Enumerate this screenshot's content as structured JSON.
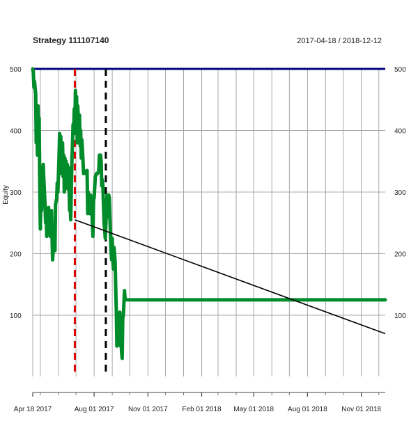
{
  "chart_data": {
    "type": "line",
    "title": "Strategy 111107140",
    "date_range": "2017-04-18 / 2018-12-12",
    "ylabel": "Equity",
    "xlabel": "",
    "xlim": [
      "2017-04-18",
      "2018-12-12"
    ],
    "ylim": [
      0,
      500
    ],
    "y_ticks": [
      100,
      200,
      300,
      400,
      500
    ],
    "x_ticks": [
      {
        "date": "2017-04-18",
        "label": "Apr 18 2017"
      },
      {
        "date": "2017-08-01",
        "label": "Aug 01 2017"
      },
      {
        "date": "2017-11-01",
        "label": "Nov 01 2017"
      },
      {
        "date": "2018-02-01",
        "label": "Feb 01 2018"
      },
      {
        "date": "2018-05-01",
        "label": "May 01 2018"
      },
      {
        "date": "2018-08-01",
        "label": "Aug 01 2018"
      },
      {
        "date": "2018-11-01",
        "label": "Nov 01 2018"
      }
    ],
    "minor_gridlines": [
      "2017-05-01",
      "2017-06-01",
      "2017-07-01",
      "2017-09-01",
      "2017-10-01",
      "2017-12-01",
      "2018-01-01",
      "2018-03-01",
      "2018-04-01",
      "2018-06-01",
      "2018-07-01",
      "2018-09-01",
      "2018-10-01",
      "2018-12-01"
    ],
    "grid": true,
    "series": [
      {
        "color": "#008c2a",
        "points": [
          [
            "2017-04-18",
            500
          ],
          [
            "2017-04-19",
            495
          ],
          [
            "2017-04-20",
            470
          ],
          [
            "2017-04-21",
            480
          ],
          [
            "2017-04-23",
            460
          ],
          [
            "2017-04-24",
            380
          ],
          [
            "2017-04-25",
            430
          ],
          [
            "2017-04-26",
            360
          ],
          [
            "2017-04-27",
            440
          ],
          [
            "2017-04-28",
            390
          ],
          [
            "2017-04-29",
            420
          ],
          [
            "2017-04-30",
            310
          ],
          [
            "2017-05-01",
            240
          ],
          [
            "2017-05-02",
            290
          ],
          [
            "2017-05-03",
            270
          ],
          [
            "2017-05-04",
            340
          ],
          [
            "2017-05-05",
            300
          ],
          [
            "2017-05-06",
            345
          ],
          [
            "2017-05-07",
            320
          ],
          [
            "2017-05-08",
            300
          ],
          [
            "2017-05-09",
            280
          ],
          [
            "2017-05-10",
            250
          ],
          [
            "2017-05-11",
            270
          ],
          [
            "2017-05-12",
            228
          ],
          [
            "2017-05-13",
            265
          ],
          [
            "2017-05-14",
            245
          ],
          [
            "2017-05-15",
            275
          ],
          [
            "2017-05-16",
            250
          ],
          [
            "2017-05-18",
            228
          ],
          [
            "2017-05-20",
            270
          ],
          [
            "2017-05-21",
            230
          ],
          [
            "2017-05-22",
            190
          ],
          [
            "2017-05-23",
            205
          ],
          [
            "2017-05-24",
            245
          ],
          [
            "2017-05-26",
            205
          ],
          [
            "2017-05-27",
            280
          ],
          [
            "2017-05-29",
            290
          ],
          [
            "2017-05-30",
            315
          ],
          [
            "2017-05-31",
            300
          ],
          [
            "2017-06-02",
            360
          ],
          [
            "2017-06-03",
            395
          ],
          [
            "2017-06-04",
            370
          ],
          [
            "2017-06-05",
            390
          ],
          [
            "2017-06-06",
            330
          ],
          [
            "2017-06-08",
            380
          ],
          [
            "2017-06-09",
            325
          ],
          [
            "2017-06-10",
            360
          ],
          [
            "2017-06-11",
            300
          ],
          [
            "2017-06-12",
            355
          ],
          [
            "2017-06-13",
            335
          ],
          [
            "2017-06-14",
            350
          ],
          [
            "2017-06-15",
            320
          ],
          [
            "2017-06-16",
            345
          ],
          [
            "2017-06-17",
            305
          ],
          [
            "2017-06-18",
            340
          ],
          [
            "2017-06-19",
            320
          ],
          [
            "2017-06-20",
            270
          ],
          [
            "2017-06-21",
            290
          ],
          [
            "2017-06-22",
            255
          ],
          [
            "2017-06-23",
            305
          ],
          [
            "2017-06-24",
            350
          ],
          [
            "2017-06-25",
            380
          ],
          [
            "2017-06-26",
            410
          ],
          [
            "2017-06-27",
            395
          ],
          [
            "2017-06-28",
            435
          ],
          [
            "2017-06-29",
            400
          ],
          [
            "2017-06-30",
            465
          ],
          [
            "2017-07-01",
            430
          ],
          [
            "2017-07-02",
            455
          ],
          [
            "2017-07-03",
            380
          ],
          [
            "2017-07-04",
            440
          ],
          [
            "2017-07-05",
            415
          ],
          [
            "2017-07-06",
            390
          ],
          [
            "2017-07-07",
            425
          ],
          [
            "2017-07-08",
            375
          ],
          [
            "2017-07-09",
            400
          ],
          [
            "2017-07-10",
            355
          ],
          [
            "2017-07-11",
            385
          ],
          [
            "2017-07-12",
            370
          ],
          [
            "2017-07-14",
            330
          ],
          [
            "2017-07-15",
            330
          ],
          [
            "2017-07-20",
            335
          ],
          [
            "2017-07-21",
            265
          ],
          [
            "2017-07-22",
            300
          ],
          [
            "2017-07-23",
            270
          ],
          [
            "2017-07-24",
            268
          ],
          [
            "2017-07-25",
            265
          ],
          [
            "2017-07-26",
            295
          ],
          [
            "2017-07-27",
            265
          ],
          [
            "2017-07-28",
            275
          ],
          [
            "2017-07-29",
            250
          ],
          [
            "2017-07-30",
            228
          ],
          [
            "2017-07-31",
            290
          ],
          [
            "2017-08-01",
            290
          ],
          [
            "2017-08-03",
            325
          ],
          [
            "2017-08-05",
            330
          ],
          [
            "2017-08-07",
            330
          ],
          [
            "2017-08-09",
            335
          ],
          [
            "2017-08-10",
            360
          ],
          [
            "2017-08-11",
            340
          ],
          [
            "2017-08-12",
            360
          ],
          [
            "2017-08-13",
            350
          ],
          [
            "2017-08-14",
            310
          ],
          [
            "2017-08-15",
            320
          ],
          [
            "2017-08-16",
            310
          ],
          [
            "2017-08-17",
            280
          ],
          [
            "2017-08-18",
            250
          ],
          [
            "2017-08-19",
            240
          ],
          [
            "2017-08-20",
            225
          ],
          [
            "2017-08-21",
            245
          ],
          [
            "2017-08-22",
            265
          ],
          [
            "2017-08-23",
            295
          ],
          [
            "2017-08-24",
            260
          ],
          [
            "2017-08-25",
            280
          ],
          [
            "2017-08-26",
            295
          ],
          [
            "2017-08-27",
            290
          ],
          [
            "2017-08-29",
            230
          ],
          [
            "2017-08-30",
            205
          ],
          [
            "2017-08-31",
            190
          ],
          [
            "2017-09-01",
            225
          ],
          [
            "2017-09-02",
            190
          ],
          [
            "2017-09-03",
            175
          ],
          [
            "2017-09-04",
            210
          ],
          [
            "2017-09-05",
            200
          ],
          [
            "2017-09-06",
            185
          ],
          [
            "2017-09-07",
            140
          ],
          [
            "2017-09-08",
            105
          ],
          [
            "2017-09-09",
            50
          ],
          [
            "2017-09-10",
            80
          ],
          [
            "2017-09-11",
            100
          ],
          [
            "2017-09-12",
            75
          ],
          [
            "2017-09-13",
            65
          ],
          [
            "2017-09-14",
            105
          ],
          [
            "2017-09-15",
            50
          ],
          [
            "2017-09-16",
            80
          ],
          [
            "2017-09-17",
            40
          ],
          [
            "2017-09-18",
            30
          ],
          [
            "2017-09-19",
            95
          ],
          [
            "2017-09-20",
            100
          ],
          [
            "2017-09-21",
            120
          ],
          [
            "2017-09-22",
            140
          ],
          [
            "2017-09-23",
            125
          ],
          [
            "2018-12-12",
            125
          ]
        ]
      }
    ],
    "reference_lines": [
      {
        "kind": "horizontal",
        "y": 500,
        "color": "#000080"
      },
      {
        "kind": "vertical",
        "x": "2017-06-29",
        "color": "#dd0000",
        "dashed": true
      },
      {
        "kind": "vertical",
        "x": "2017-08-21",
        "color": "#000000",
        "dashed": true
      },
      {
        "kind": "trend",
        "from": [
          "2017-06-29",
          255
        ],
        "to": [
          "2018-12-12",
          70
        ],
        "color": "#000000"
      }
    ]
  }
}
